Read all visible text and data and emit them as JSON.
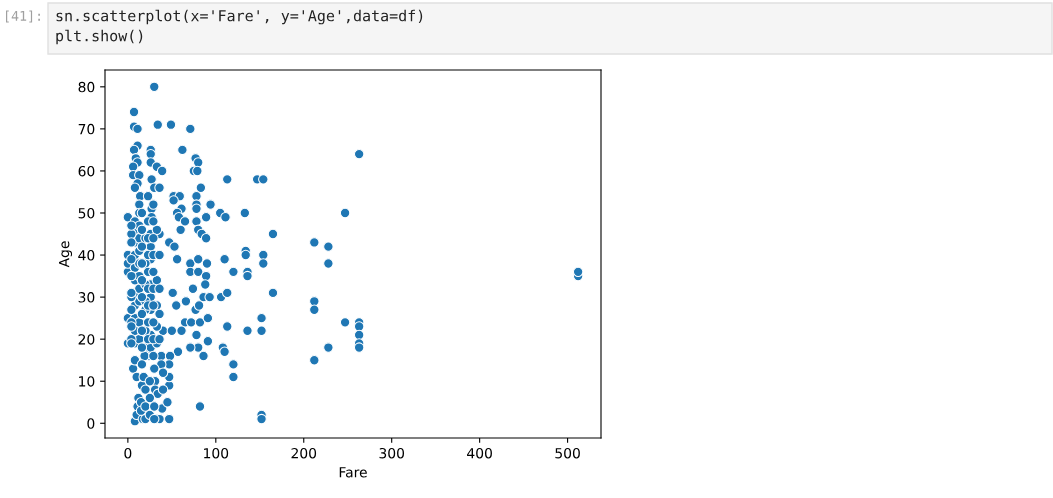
{
  "chart_data": {
    "type": "scatter",
    "xlabel": "Fare",
    "ylabel": "Age",
    "annotations": [
      "[41]:",
      "sn.scatterplot(x='Fare', y='Age',data=df)",
      "plt.show()"
    ],
    "color": "#1f77b4",
    "marker": "circle",
    "grid": false,
    "xlim": [
      -26,
      538
    ],
    "ylim": [
      -3.5,
      84
    ],
    "xticks": [
      0,
      100,
      200,
      300,
      400,
      500
    ],
    "yticks": [
      0,
      10,
      20,
      30,
      40,
      50,
      60,
      70,
      80
    ],
    "x": [
      30,
      7,
      7,
      11,
      34,
      49,
      71,
      11,
      7,
      26,
      26,
      62,
      9,
      11,
      6,
      26,
      33,
      39,
      77,
      80,
      75,
      79,
      263,
      113,
      147,
      154,
      83,
      6,
      13,
      11,
      8,
      14,
      27,
      30,
      36,
      23,
      52,
      59,
      52,
      78,
      78,
      78,
      94,
      61,
      56,
      58,
      89,
      105,
      111,
      0,
      13,
      13,
      27,
      27,
      133,
      247,
      78,
      80,
      84,
      89,
      60,
      47,
      53,
      65,
      36,
      165,
      212,
      228,
      228,
      110,
      134,
      134,
      154,
      154,
      120,
      136,
      136,
      106,
      113,
      165,
      212,
      212,
      113,
      136,
      152,
      152,
      247,
      263,
      263,
      263,
      263,
      263,
      228,
      212,
      108,
      110,
      120,
      120,
      152,
      152,
      512,
      512,
      56,
      71,
      80,
      90,
      71,
      80,
      89,
      88,
      74,
      51,
      66,
      55,
      86,
      93,
      77,
      81,
      65,
      72,
      82,
      91,
      40,
      50,
      61,
      78,
      91,
      80,
      71,
      57,
      86,
      38,
      24,
      48,
      21,
      8,
      47,
      36,
      82,
      47,
      47,
      47,
      38,
      16,
      12,
      11,
      10,
      17,
      31,
      31,
      34,
      39,
      6,
      10,
      18,
      30,
      19,
      0,
      0,
      0,
      0,
      0,
      8,
      8,
      8,
      8,
      8,
      8,
      8,
      8,
      8,
      8,
      8,
      8,
      13,
      13,
      13,
      13,
      13,
      13,
      13,
      13,
      13,
      26,
      26,
      26,
      26,
      26,
      26,
      26,
      26,
      33,
      33,
      33,
      33,
      33,
      20,
      20,
      20,
      20,
      20,
      20,
      4,
      4,
      4,
      4,
      4,
      4,
      4,
      4,
      4,
      4,
      4,
      4,
      16,
      16,
      16,
      16,
      16,
      16,
      16,
      16,
      16,
      16,
      23,
      23,
      23,
      23,
      23,
      23,
      23,
      23,
      29,
      29,
      29,
      29,
      29,
      29,
      29,
      29,
      29,
      29,
      36,
      36,
      36,
      36,
      15,
      15,
      20,
      20,
      20,
      25,
      25,
      25,
      30,
      30,
      40,
      40,
      45
    ],
    "values": [
      80,
      74,
      70.5,
      70,
      71,
      71,
      70,
      66,
      65,
      65,
      64,
      65,
      63,
      62,
      61,
      62,
      61,
      60,
      63,
      62,
      60,
      60,
      64,
      58,
      58,
      58,
      56,
      59,
      59,
      57,
      56,
      54,
      58,
      56,
      56,
      54,
      54,
      54,
      53,
      54,
      52,
      51,
      52,
      51,
      50,
      49,
      49,
      50,
      49,
      49,
      52,
      50,
      51,
      49,
      50,
      50,
      48,
      46,
      45,
      44,
      46,
      43,
      42,
      48,
      45,
      45,
      43,
      42,
      38,
      39,
      41,
      40,
      40,
      38,
      36,
      36,
      35,
      30,
      31,
      31,
      29,
      27,
      23,
      22,
      25,
      22,
      24,
      24,
      23,
      21,
      19,
      18,
      18,
      15,
      18,
      17,
      14,
      11,
      2,
      1,
      35,
      36,
      39,
      38,
      39,
      38,
      36,
      36,
      35,
      33,
      32,
      31,
      29,
      28,
      30,
      30,
      27,
      28,
      24,
      24,
      24,
      25,
      22,
      22,
      22,
      21,
      19.5,
      18,
      18,
      17,
      16,
      16,
      16,
      16,
      18,
      0.5,
      1,
      1,
      4,
      9,
      11,
      14,
      14,
      9,
      6,
      4,
      2,
      1,
      10,
      8,
      7,
      3.5,
      13,
      11,
      11,
      13,
      16,
      19,
      25,
      36,
      38,
      40,
      48,
      46,
      43,
      40,
      37,
      34,
      31,
      28,
      25,
      22,
      19,
      15,
      47,
      44,
      41,
      38,
      35,
      32,
      29,
      24,
      20,
      45,
      42,
      39,
      33,
      30,
      27,
      21,
      18,
      46,
      34,
      28,
      23,
      19,
      44,
      38,
      33,
      29,
      27,
      22,
      45,
      30,
      24,
      20,
      47,
      43,
      39,
      35,
      31,
      27,
      23,
      19,
      50,
      46,
      42,
      38,
      34,
      30,
      26,
      22,
      18,
      14,
      48,
      44,
      40,
      36,
      32,
      28,
      24,
      20,
      52,
      48,
      44,
      40,
      36,
      32,
      28,
      24,
      20,
      16,
      40,
      32,
      26,
      20,
      5,
      3,
      8,
      4,
      1,
      6,
      2,
      10,
      4,
      1,
      8,
      12,
      5
    ]
  }
}
